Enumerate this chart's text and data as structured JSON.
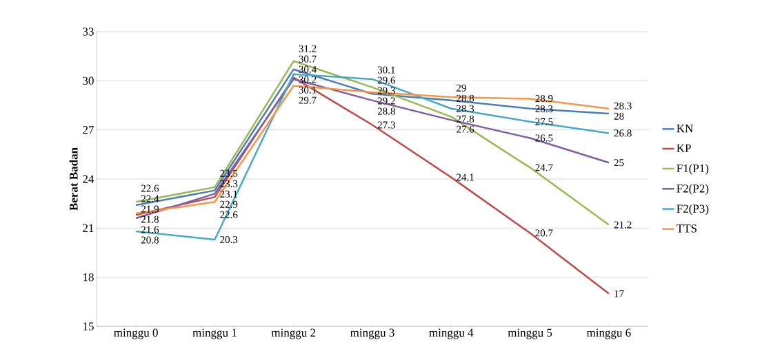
{
  "chart_data": {
    "type": "line",
    "ylabel": "Berat Badan",
    "categories": [
      "minggu 0",
      "minggu 1",
      "minggu 2",
      "minggu 3",
      "minggu 4",
      "minggu 5",
      "minggu 6"
    ],
    "series": [
      {
        "name": "KN",
        "color": "#4a7ebb",
        "values": [
          22.4,
          23.3,
          30.7,
          29.2,
          28.8,
          28.3,
          28
        ]
      },
      {
        "name": "KP",
        "color": "#be4b48",
        "values": [
          21.8,
          22.9,
          30.2,
          27.3,
          24.1,
          20.7,
          17
        ]
      },
      {
        "name": "F1(P1)",
        "color": "#98b954",
        "values": [
          22.6,
          23.5,
          31.2,
          29.6,
          27.8,
          24.7,
          21.2
        ]
      },
      {
        "name": "F2(P2)",
        "color": "#7d60a0",
        "values": [
          21.6,
          23.1,
          30.1,
          28.8,
          27.6,
          26.5,
          25
        ]
      },
      {
        "name": "F2(P3)",
        "color": "#46aac5",
        "values": [
          20.8,
          20.3,
          30.4,
          30.1,
          28.3,
          27.5,
          26.8
        ]
      },
      {
        "name": "TTS",
        "color": "#f79646",
        "values": [
          21.9,
          22.6,
          29.7,
          29.3,
          29,
          28.9,
          28.3
        ]
      }
    ],
    "ylim": [
      15,
      33
    ],
    "yticks": [
      15,
      18,
      21,
      24,
      27,
      30,
      33
    ],
    "grid": "y",
    "legend": "right",
    "marker": "none",
    "line_style": "solid",
    "data_labels": true
  }
}
